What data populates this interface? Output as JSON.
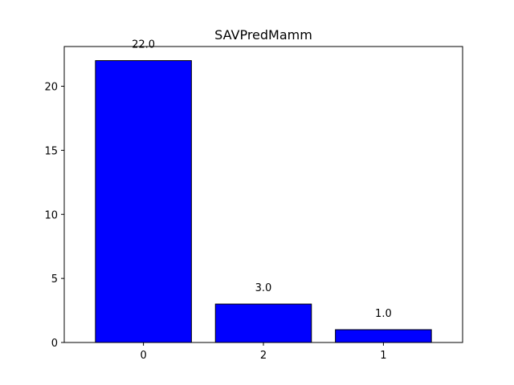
{
  "chart_data": {
    "type": "bar",
    "title": "SAVPredMamm",
    "xlabel": "",
    "ylabel": "",
    "categories": [
      "0",
      "2",
      "1"
    ],
    "values": [
      22.0,
      3.0,
      1.0
    ],
    "value_labels": [
      "22.0",
      "3.0",
      "1.0"
    ],
    "ylim": [
      0,
      23.1
    ],
    "yticks": [
      0,
      5,
      10,
      15,
      20
    ],
    "ytick_labels": [
      "0",
      "5",
      "10",
      "15",
      "20"
    ],
    "grid": false,
    "legend": "none",
    "colors": {
      "bar_fill": "#0000ff",
      "bar_edge": "#000000",
      "axes": "#000000",
      "background": "#ffffff"
    }
  }
}
